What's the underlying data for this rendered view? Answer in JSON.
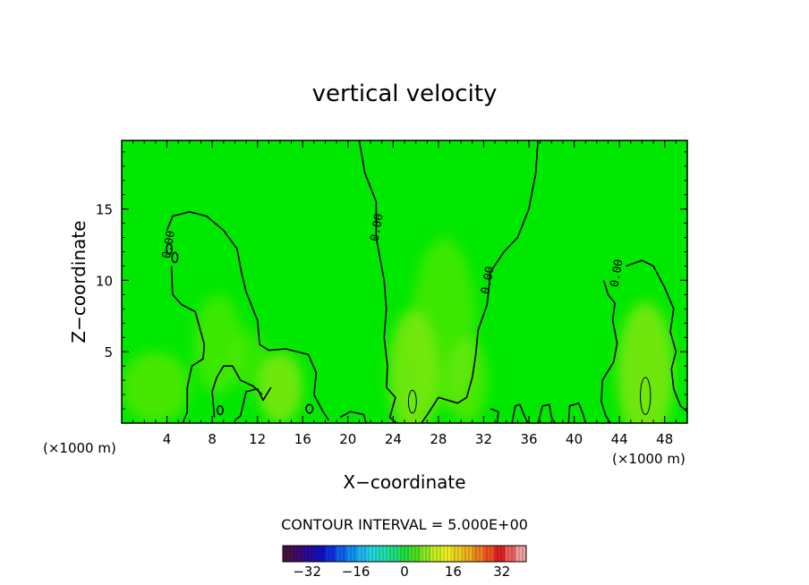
{
  "chart_data": {
    "type": "heatmap",
    "title": "vertical velocity",
    "xlabel": "X−coordinate",
    "ylabel": "Z−coordinate",
    "x_unit": "(×1000 m)",
    "x_unit_right": "(×1000 m)",
    "xlim": [
      0,
      50
    ],
    "ylim": [
      0,
      19.8
    ],
    "x_ticks": [
      "4",
      "8",
      "12",
      "16",
      "20",
      "24",
      "28",
      "32",
      "36",
      "40",
      "44",
      "48"
    ],
    "y_ticks": [
      "5",
      "10",
      "15"
    ],
    "contour_interval_text": "CONTOUR INTERVAL = 5.000E+00",
    "contour_labels": [
      {
        "text": "0.00",
        "x": 4.2,
        "y": 12.5
      },
      {
        "text": "0.00",
        "x": 22.6,
        "y": 13.7
      },
      {
        "text": "0.00",
        "x": 32.4,
        "y": 10.0
      },
      {
        "text": "0.00",
        "x": 43.8,
        "y": 10.5
      }
    ],
    "contours": [
      {
        "level": 0,
        "points": [
          [
            4,
            13.5
          ],
          [
            4.5,
            14.5
          ],
          [
            6,
            14.8
          ],
          [
            7.5,
            14.5
          ],
          [
            9,
            13.5
          ],
          [
            10.2,
            12.2
          ],
          [
            10.6,
            10.5
          ],
          [
            11,
            9.2
          ],
          [
            12,
            7.2
          ],
          [
            12.2,
            5.5
          ],
          [
            13,
            5.1
          ],
          [
            14.5,
            5.2
          ],
          [
            16.5,
            4.8
          ],
          [
            17.2,
            3.5
          ],
          [
            17,
            2
          ],
          [
            17.8,
            0.8
          ],
          [
            18.3,
            0.2
          ]
        ]
      },
      {
        "level": 0,
        "points": [
          [
            4.4,
            11
          ],
          [
            4.5,
            9
          ],
          [
            5.3,
            8.3
          ],
          [
            6.5,
            7.8
          ],
          [
            7.3,
            5.5
          ],
          [
            7.2,
            4.5
          ],
          [
            6.2,
            4
          ],
          [
            5.8,
            2.5
          ],
          [
            5.8,
            0.8
          ],
          [
            5.4,
            0
          ]
        ]
      },
      {
        "level": 0,
        "points": [
          [
            21,
            19.8
          ],
          [
            21.5,
            17.5
          ],
          [
            22.5,
            15.5
          ],
          [
            22.5,
            13
          ],
          [
            23.2,
            10
          ],
          [
            23.4,
            8
          ],
          [
            23.2,
            6
          ],
          [
            23.5,
            4
          ],
          [
            23.4,
            2.5
          ],
          [
            24.2,
            1.8
          ],
          [
            23.7,
            0.4
          ],
          [
            24.3,
            0
          ]
        ]
      },
      {
        "level": 0,
        "points": [
          [
            36.8,
            19.8
          ],
          [
            36.6,
            17.5
          ],
          [
            36,
            15
          ],
          [
            35,
            13
          ],
          [
            33.8,
            12
          ],
          [
            32.6,
            10.6
          ],
          [
            32.3,
            8.3
          ],
          [
            31.5,
            6.5
          ],
          [
            31.3,
            4.8
          ],
          [
            31,
            3.2
          ],
          [
            30.5,
            1.8
          ],
          [
            29.7,
            1.4
          ],
          [
            28,
            1.8
          ],
          [
            27.2,
            0.8
          ],
          [
            26.5,
            0
          ]
        ]
      },
      {
        "level": 0,
        "points": [
          [
            42.6,
            10
          ],
          [
            43,
            9
          ],
          [
            43.6,
            8.4
          ],
          [
            43.4,
            7.2
          ],
          [
            43.8,
            5.6
          ],
          [
            43.5,
            4.3
          ],
          [
            42.5,
            3
          ],
          [
            42.4,
            1.5
          ],
          [
            42.8,
            0.5
          ],
          [
            43.2,
            0
          ]
        ]
      },
      {
        "level": 0,
        "points": [
          [
            44.6,
            11
          ],
          [
            46,
            11.4
          ],
          [
            47,
            11
          ],
          [
            48,
            9.5
          ],
          [
            48.8,
            8
          ],
          [
            48.5,
            6.4
          ],
          [
            49,
            5
          ],
          [
            48.6,
            3.8
          ],
          [
            48.8,
            2.4
          ],
          [
            49.4,
            1.2
          ],
          [
            50,
            0.8
          ]
        ]
      },
      {
        "level": 0,
        "points": [
          [
            13.2,
            2.5
          ],
          [
            12.5,
            1.6
          ],
          [
            12,
            2.4
          ],
          [
            11,
            2.2
          ],
          [
            10.5,
            0.5
          ],
          [
            10,
            0.2
          ]
        ]
      },
      {
        "level": 0,
        "points": [
          [
            8.2,
            0.4
          ],
          [
            8,
            2.2
          ],
          [
            8.4,
            3.2
          ],
          [
            9,
            4
          ],
          [
            9.8,
            4
          ],
          [
            10.5,
            3
          ],
          [
            11.6,
            2.6
          ],
          [
            12.4,
            2
          ]
        ]
      },
      {
        "level": 0,
        "points": [
          [
            19.3,
            0.4
          ],
          [
            20.2,
            0.8
          ],
          [
            21.4,
            0.6
          ],
          [
            21.6,
            0
          ]
        ]
      },
      {
        "level": 0,
        "points": [
          [
            33.2,
            0
          ],
          [
            33.3,
            0.8
          ],
          [
            32.6,
            1
          ]
        ]
      },
      {
        "level": 0,
        "points": [
          [
            34.5,
            0
          ],
          [
            34.8,
            1.2
          ],
          [
            35.2,
            1.3
          ],
          [
            35.6,
            0.5
          ],
          [
            35.9,
            0
          ]
        ]
      },
      {
        "level": 0,
        "points": [
          [
            36.8,
            0
          ],
          [
            37.2,
            1.2
          ],
          [
            37.8,
            1.3
          ],
          [
            38,
            0.4
          ],
          [
            38.3,
            0
          ]
        ]
      },
      {
        "level": 0,
        "points": [
          [
            39.5,
            0
          ],
          [
            39.6,
            1.2
          ],
          [
            40.4,
            1.4
          ],
          [
            40.8,
            0.6
          ],
          [
            41,
            0
          ]
        ]
      }
    ],
    "closed_contours": [
      {
        "level": 5,
        "cx": 25.7,
        "cy": 1.5,
        "rx": 0.35,
        "ry": 0.8
      },
      {
        "level": 5,
        "cx": 46.3,
        "cy": 1.9,
        "rx": 0.45,
        "ry": 1.3
      },
      {
        "level": 0,
        "cx": 8.7,
        "cy": 0.9,
        "rx": 0.25,
        "ry": 0.3
      },
      {
        "level": 0,
        "cx": 16.6,
        "cy": 1.0,
        "rx": 0.3,
        "ry": 0.3
      },
      {
        "level": 0,
        "cx": 4.2,
        "cy": 12.2,
        "rx": 0.25,
        "ry": 0.35
      },
      {
        "level": 0,
        "cx": 4.7,
        "cy": 11.6,
        "rx": 0.25,
        "ry": 0.35
      }
    ],
    "warm_patches": [
      {
        "cx": 3,
        "cy": 2.5,
        "rx": 3,
        "ry": 2.5,
        "v": 6
      },
      {
        "cx": 8.5,
        "cy": 5.5,
        "rx": 2.2,
        "ry": 3.5,
        "v": 5
      },
      {
        "cx": 14,
        "cy": 2.5,
        "rx": 2,
        "ry": 2.5,
        "v": 10
      },
      {
        "cx": 25.8,
        "cy": 3.5,
        "rx": 2.2,
        "ry": 4.5,
        "v": 9
      },
      {
        "cx": 28.5,
        "cy": 7,
        "rx": 2.8,
        "ry": 6,
        "v": 5
      },
      {
        "cx": 30.5,
        "cy": 3,
        "rx": 1.8,
        "ry": 3,
        "v": 6
      },
      {
        "cx": 46.3,
        "cy": 3.5,
        "rx": 2.5,
        "ry": 5,
        "v": 10
      },
      {
        "cx": 11.3,
        "cy": 4.5,
        "rx": 1.5,
        "ry": 2,
        "v": 4
      }
    ],
    "colorbar": {
      "min": -40,
      "max": 40,
      "tick_values": [
        -32,
        -16,
        0,
        16,
        32
      ],
      "tick_labels": [
        "−32",
        "−16",
        "0",
        "16",
        "32"
      ],
      "colors": [
        "#4a1040",
        "#3a0a70",
        "#2a0a9a",
        "#1010c0",
        "#1030e0",
        "#1060f0",
        "#1090f0",
        "#20b8f0",
        "#20d8e0",
        "#20e0b0",
        "#20e080",
        "#20e040",
        "#50e020",
        "#90e820",
        "#c8f020",
        "#f0f020",
        "#f0d020",
        "#f0b020",
        "#f08020",
        "#f05020",
        "#e02020",
        "#f06060",
        "#f0a0a0"
      ]
    },
    "colors": {
      "background_field": "#00e800",
      "contour_line": "#000000"
    }
  }
}
